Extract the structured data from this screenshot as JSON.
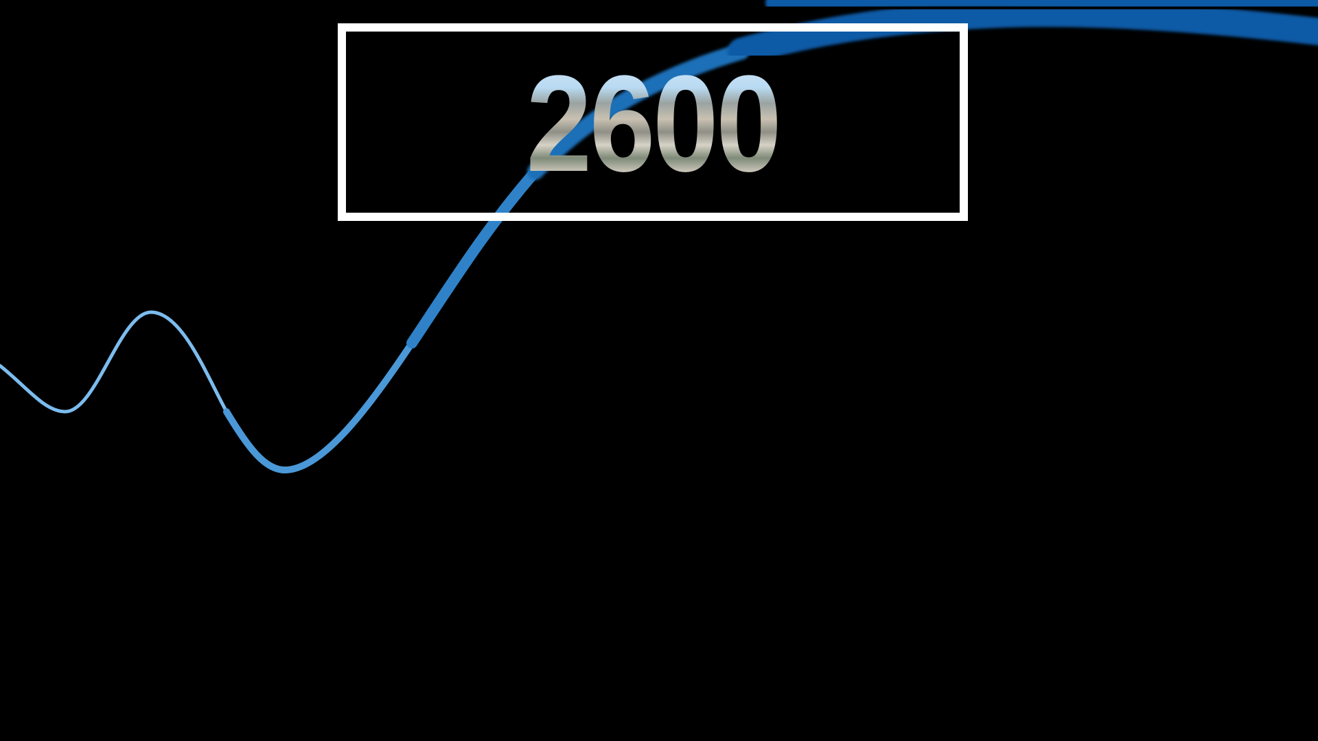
{
  "display": {
    "year_label": "2600"
  },
  "colors": {
    "background": "#000000",
    "box_border": "#ffffff",
    "curve_thin": "#6fb3ea",
    "curve_mid": "#2f7fc4",
    "curve_thick": "#0a5aa6"
  }
}
